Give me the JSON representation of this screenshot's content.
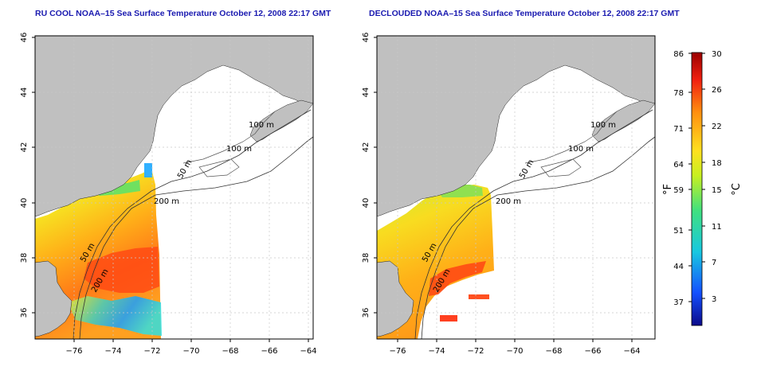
{
  "panels": [
    {
      "title": "RU COOL NOAA–15 Sea Surface Temperature October 12, 2008 22:17 GMT",
      "lon_ticks": [
        "−76",
        "−74",
        "−72",
        "−70",
        "−68",
        "−66",
        "−64"
      ],
      "lat_ticks": [
        "36",
        "38",
        "40",
        "42",
        "44",
        "46"
      ]
    },
    {
      "title": "DECLOUDED NOAA–15 Sea Surface Temperature October 12, 2008 22:17 GMT",
      "lon_ticks": [
        "−76",
        "−74",
        "−72",
        "−70",
        "−68",
        "−66",
        "−64"
      ],
      "lat_ticks": [
        "36",
        "38",
        "40",
        "42",
        "44",
        "46"
      ]
    }
  ],
  "contours": {
    "label_200": "200 m",
    "label_100": "100 m",
    "label_50": "50 m",
    "label_100_b": "100 m",
    "label_50_b": "50 m",
    "label_200_b": "200 m"
  },
  "colorbar": {
    "f_unit": "°F",
    "c_unit": "°C",
    "f_ticks": [
      "86",
      "78",
      "71",
      "64",
      "59",
      "51",
      "44",
      "37"
    ],
    "c_ticks": [
      "30",
      "26",
      "22",
      "18",
      "15",
      "11",
      "7",
      "3"
    ]
  },
  "colors": {
    "land": "#c0c0c0",
    "title": "#1a1ab0",
    "grid": "#c8c8c8"
  }
}
